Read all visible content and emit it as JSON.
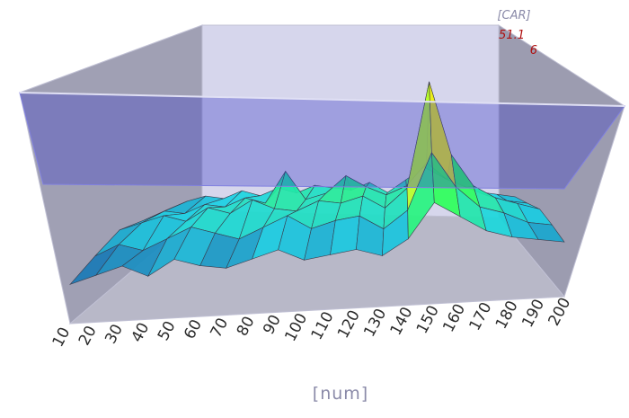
{
  "chart_data": {
    "type": "surface",
    "title": "",
    "x_axis": {
      "label": "[num]",
      "ticks": [
        "10",
        "20",
        "30",
        "40",
        "50",
        "60",
        "70",
        "80",
        "90",
        "100",
        "110",
        "120",
        "130",
        "140",
        "150",
        "160",
        "170",
        "180",
        "190",
        "200"
      ]
    },
    "z_axis": {
      "label": "[CAR]"
    },
    "legend": {
      "max_label": "51.1",
      "second_label": "6"
    },
    "series": [
      {
        "values": [
          2,
          4,
          6,
          3,
          7,
          5,
          4,
          6,
          8,
          5,
          6,
          7,
          5,
          9,
          18,
          14,
          10,
          8,
          7,
          6
        ]
      },
      {
        "values": [
          5,
          8,
          6,
          9,
          12,
          10,
          8,
          11,
          14,
          10,
          12,
          13,
          9,
          14,
          30,
          20,
          14,
          12,
          9,
          8
        ]
      },
      {
        "values": [
          8,
          10,
          12,
          10,
          14,
          12,
          16,
          13,
          12,
          15,
          14,
          16,
          12,
          18,
          51.1,
          28,
          18,
          14,
          12,
          10
        ]
      },
      {
        "values": [
          6,
          9,
          8,
          11,
          10,
          13,
          11,
          22,
          12,
          14,
          20,
          16,
          13,
          16,
          24,
          18,
          15,
          12,
          10,
          9
        ]
      },
      {
        "values": [
          4,
          7,
          9,
          8,
          11,
          9,
          12,
          10,
          13,
          12,
          11,
          14,
          10,
          15,
          20,
          16,
          13,
          10,
          9,
          8
        ]
      }
    ],
    "colormap": [
      "#1a2a8c",
      "#1ad4e6",
      "#2bff5a",
      "#e6ff1a",
      "#ff8a10",
      "#e01010"
    ],
    "plane_color": "#3a3ac8",
    "box_color": "#b8b8cc",
    "grid": false
  }
}
